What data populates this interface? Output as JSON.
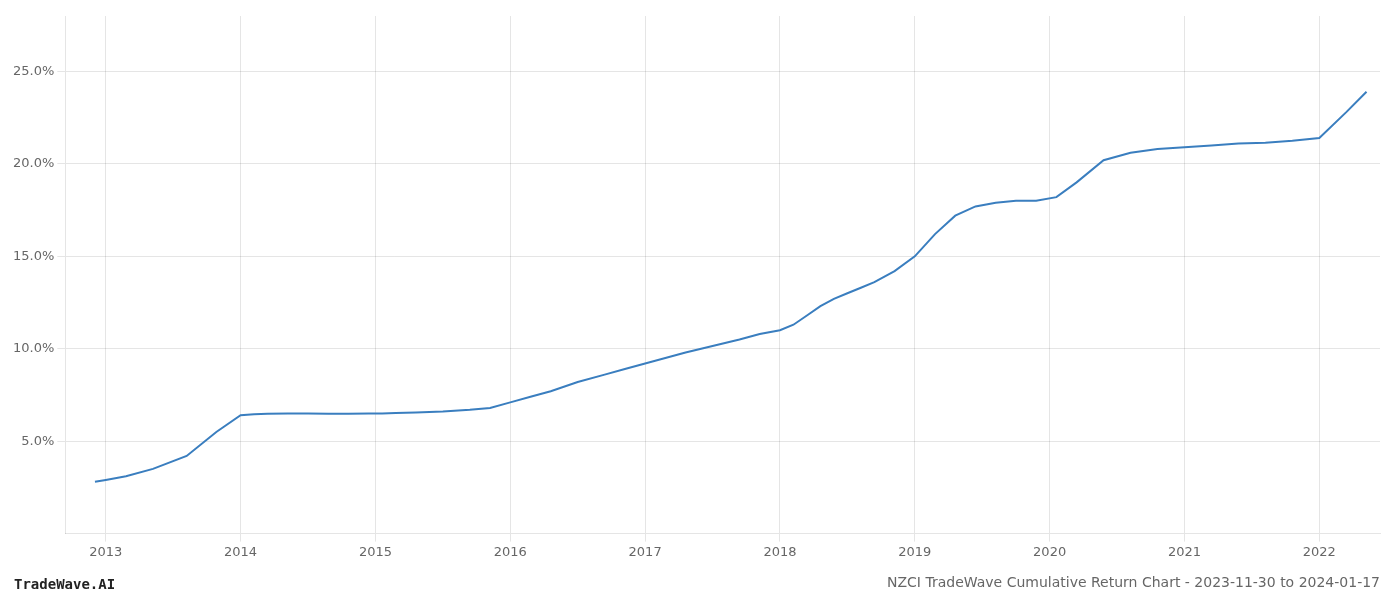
{
  "chart_data": {
    "type": "line",
    "title": "NZCI TradeWave Cumulative Return Chart - 2023-11-30 to 2024-01-17",
    "annotations": [
      "TradeWave.AI"
    ],
    "color": "#3a7ebf",
    "x": [
      2012.92,
      2013.0,
      2013.15,
      2013.35,
      2013.6,
      2013.82,
      2014.0,
      2014.1,
      2014.2,
      2014.35,
      2014.5,
      2014.65,
      2014.8,
      2014.95,
      2015.05,
      2015.15,
      2015.3,
      2015.5,
      2015.7,
      2015.85,
      2016.0,
      2016.15,
      2016.3,
      2016.5,
      2016.7,
      2016.85,
      2017.0,
      2017.15,
      2017.3,
      2017.5,
      2017.7,
      2017.85,
      2018.0,
      2018.1,
      2018.2,
      2018.3,
      2018.4,
      2018.5,
      2018.6,
      2018.7,
      2018.85,
      2019.0,
      2019.15,
      2019.3,
      2019.45,
      2019.6,
      2019.75,
      2019.9,
      2020.05,
      2020.2,
      2020.4,
      2020.6,
      2020.8,
      2021.0,
      2021.2,
      2021.4,
      2021.6,
      2021.8,
      2022.0,
      2022.2,
      2022.35
    ],
    "values": [
      2.8,
      2.9,
      3.1,
      3.5,
      4.2,
      5.5,
      6.4,
      6.45,
      6.48,
      6.5,
      6.5,
      6.48,
      6.48,
      6.5,
      6.5,
      6.52,
      6.55,
      6.6,
      6.7,
      6.8,
      7.1,
      7.4,
      7.7,
      8.2,
      8.6,
      8.9,
      9.2,
      9.5,
      9.8,
      10.15,
      10.5,
      10.8,
      11.0,
      11.3,
      11.8,
      12.3,
      12.7,
      13.0,
      13.3,
      13.6,
      14.2,
      15.0,
      16.2,
      17.2,
      17.7,
      17.9,
      18.0,
      18.0,
      18.2,
      19.0,
      20.2,
      20.6,
      20.8,
      20.9,
      21.0,
      21.1,
      21.15,
      21.25,
      21.4,
      22.8,
      23.9
    ],
    "xlim": [
      2012.7,
      2022.45
    ],
    "ylim": [
      0,
      28
    ],
    "xticks": [
      2013,
      2014,
      2015,
      2016,
      2017,
      2018,
      2019,
      2020,
      2021,
      2022
    ],
    "yticks": [
      {
        "value": 5.0,
        "label": "5.0%"
      },
      {
        "value": 10.0,
        "label": "10.0%"
      },
      {
        "value": 15.0,
        "label": "15.0%"
      },
      {
        "value": 20.0,
        "label": "20.0%"
      },
      {
        "value": 25.0,
        "label": "25.0%"
      }
    ],
    "grid": true
  }
}
